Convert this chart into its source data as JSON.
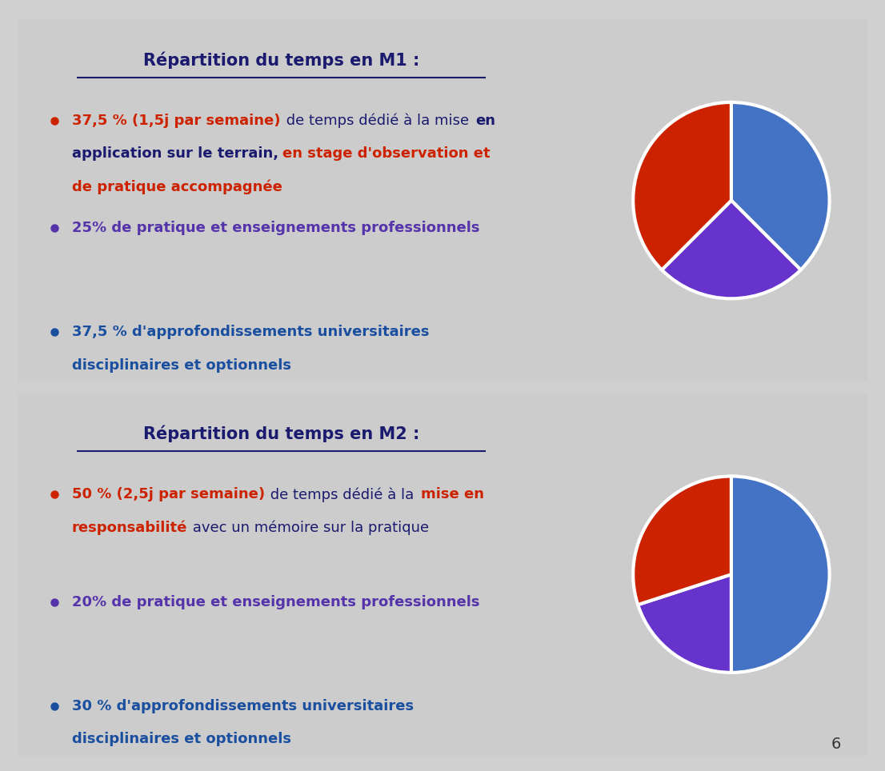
{
  "bg_color": "#d0d0d0",
  "panel_bg": "#cccccc",
  "title_color": "#1a1a6e",
  "bullet_color_red": "#cc2200",
  "bullet_color_purple": "#5533aa",
  "bullet_color_blue": "#1a4fa0",
  "panel1": {
    "title": "Répartition du temps en M1 :",
    "slices": [
      37.5,
      25.0,
      37.5
    ],
    "colors": [
      "#4472c4",
      "#6633cc",
      "#cc2200"
    ],
    "bullets": [
      {
        "parts": [
          {
            "text": "37,5 % (1,5j par semaine)",
            "color": "#cc2200",
            "bold": true
          },
          {
            "text": " de temps dédié à la mise ",
            "color": "#1a1a6e",
            "bold": false
          },
          {
            "text": "en\napplication sur le terrain,",
            "color": "#1a1a6e",
            "bold": true
          },
          {
            "text": " ",
            "color": "#cc2200",
            "bold": false
          },
          {
            "text": "en stage d'observation et\nde pratique accompagnée",
            "color": "#cc2200",
            "bold": true
          }
        ]
      },
      {
        "parts": [
          {
            "text": "25% de pratique et enseignements professionnels",
            "color": "#5533aa",
            "bold": true
          }
        ]
      },
      {
        "parts": [
          {
            "text": "37,5 % d'approfondissements universitaires\ndisciplinaires et optionnels",
            "color": "#1a4fa0",
            "bold": true
          }
        ]
      }
    ]
  },
  "panel2": {
    "title": "Répartition du temps en M2 :",
    "slices": [
      50.0,
      20.0,
      30.0
    ],
    "colors": [
      "#4472c4",
      "#6633cc",
      "#cc2200"
    ],
    "bullets": [
      {
        "parts": [
          {
            "text": "50 % (2,5j par semaine)",
            "color": "#cc2200",
            "bold": true
          },
          {
            "text": " de temps dédié à la ",
            "color": "#1a1a6e",
            "bold": false
          },
          {
            "text": "mise en\nresponsabilité",
            "color": "#cc2200",
            "bold": true
          },
          {
            "text": " avec un mémoire sur la pratique",
            "color": "#1a1a6e",
            "bold": false
          }
        ]
      },
      {
        "parts": [
          {
            "text": "20% de pratique et enseignements professionnels",
            "color": "#5533aa",
            "bold": true
          }
        ]
      },
      {
        "parts": [
          {
            "text": "30 % d'approfondissements universitaires\ndisciplinaires et optionnels",
            "color": "#1a4fa0",
            "bold": true
          }
        ]
      }
    ]
  },
  "page_number": "6"
}
